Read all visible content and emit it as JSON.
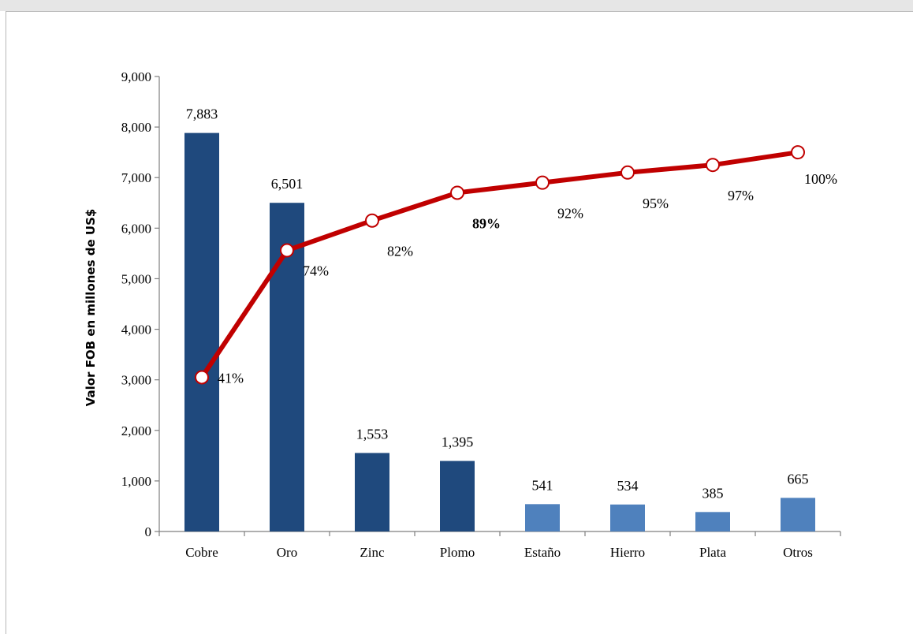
{
  "chart_data": {
    "type": "bar",
    "categories": [
      "Cobre",
      "Oro",
      "Zinc",
      "Plomo",
      "Estaño",
      "Hierro",
      "Plata",
      "Otros"
    ],
    "values": [
      7883,
      6501,
      1553,
      1395,
      541,
      534,
      385,
      665
    ],
    "value_labels": [
      "7,883",
      "6,501",
      "1,553",
      "1,395",
      "541",
      "534",
      "385",
      "665"
    ],
    "bar_colors": [
      "#1f497d",
      "#1f497d",
      "#1f497d",
      "#1f497d",
      "#4f81bd",
      "#4f81bd",
      "#4f81bd",
      "#4f81bd"
    ],
    "ylabel": "Valor FOB en millones de US$",
    "xlabel": "",
    "ylim": [
      0,
      9000
    ],
    "yticks": [
      0,
      1000,
      2000,
      3000,
      4000,
      5000,
      6000,
      7000,
      8000,
      9000
    ],
    "ytick_labels": [
      "0",
      "1,000",
      "2,000",
      "3,000",
      "4,000",
      "5,000",
      "6,000",
      "7,000",
      "8,000",
      "9,000"
    ],
    "cumulative_line": {
      "color": "#c00000",
      "marker_fill": "#ffffff",
      "y_values": [
        3050,
        5560,
        6150,
        6700,
        6900,
        7100,
        7250,
        7500
      ],
      "labels": [
        "41%",
        "74%",
        "82%",
        "89%",
        "92%",
        "95%",
        "97%",
        "100%"
      ],
      "bold_label_index": 3
    },
    "grid": false,
    "legend": "none"
  }
}
